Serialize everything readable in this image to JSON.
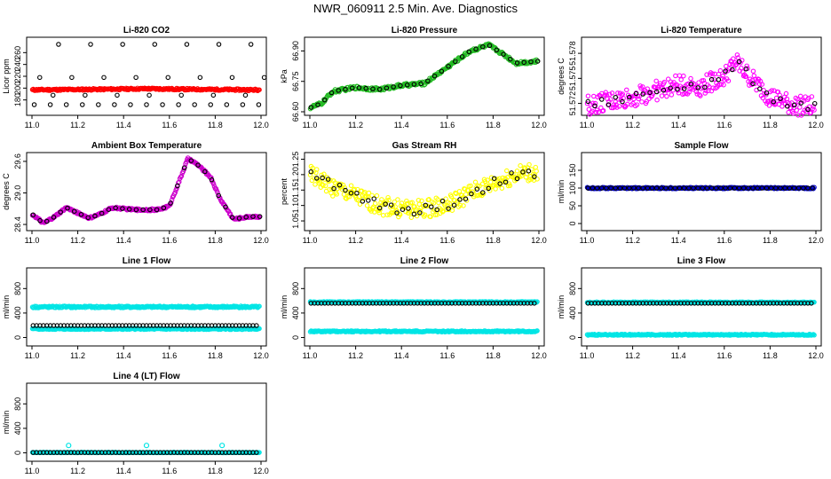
{
  "figure": {
    "title": "NWR_060911  2.5 Min. Ave. Diagnostics"
  },
  "chart_data": [
    {
      "type": "scatter",
      "title": "Li-820 CO2",
      "ylabel": "Licor ppm",
      "xlim": [
        11.0,
        12.0
      ],
      "ylim": [
        160,
        280
      ],
      "xticks": [
        "11.0",
        "11.2",
        "11.4",
        "11.6",
        "11.8",
        "12.0"
      ],
      "yticks": [
        {
          "v": 180,
          "label": "180"
        },
        {
          "v": 200,
          "label": "200"
        },
        {
          "v": 220,
          "label": "220"
        },
        {
          "v": 240,
          "label": "240"
        },
        {
          "v": 260,
          "label": "260"
        }
      ],
      "series": [
        {
          "kind": "band",
          "color": "#ff0000",
          "y": [
            [
              11.0,
              197
            ],
            [
              11.3,
              198
            ],
            [
              11.5,
              199
            ],
            [
              11.7,
              198
            ],
            [
              11.99,
              197
            ]
          ],
          "spread": 1.5
        },
        {
          "kind": "sparse",
          "color": "#000000",
          "x": [
            11.01,
            11.08,
            11.15,
            11.22,
            11.29,
            11.36,
            11.43,
            11.5,
            11.57,
            11.64,
            11.71,
            11.78,
            11.85,
            11.92,
            11.99
          ],
          "levels": [
            172,
            188,
            218,
            274
          ]
        }
      ]
    },
    {
      "type": "scatter",
      "title": "Li-820 Pressure",
      "ylabel": "kPa",
      "xlim": [
        11.0,
        12.0
      ],
      "ylim": [
        66.6,
        66.95
      ],
      "xticks": [
        "11.0",
        "11.2",
        "11.4",
        "11.6",
        "11.8",
        "12.0"
      ],
      "yticks": [
        {
          "v": 66.6,
          "label": "66.60"
        },
        {
          "v": 66.75,
          "label": "66.75"
        },
        {
          "v": 66.9,
          "label": "66.90"
        }
      ],
      "series": [
        {
          "kind": "band",
          "color": "#22bb22",
          "y": [
            [
              11.0,
              66.62
            ],
            [
              11.05,
              66.64
            ],
            [
              11.1,
              66.7
            ],
            [
              11.2,
              66.72
            ],
            [
              11.3,
              66.71
            ],
            [
              11.4,
              66.73
            ],
            [
              11.5,
              66.74
            ],
            [
              11.6,
              66.82
            ],
            [
              11.7,
              66.9
            ],
            [
              11.78,
              66.93
            ],
            [
              11.85,
              66.88
            ],
            [
              11.9,
              66.84
            ],
            [
              12.0,
              66.85
            ]
          ],
          "spread": 0.008
        },
        {
          "kind": "trace",
          "color": "#000000",
          "y": [
            [
              11.0,
              66.62
            ],
            [
              11.05,
              66.64
            ],
            [
              11.1,
              66.7
            ],
            [
              11.2,
              66.72
            ],
            [
              11.3,
              66.71
            ],
            [
              11.4,
              66.73
            ],
            [
              11.5,
              66.74
            ],
            [
              11.6,
              66.82
            ],
            [
              11.7,
              66.9
            ],
            [
              11.78,
              66.93
            ],
            [
              11.85,
              66.88
            ],
            [
              11.9,
              66.84
            ],
            [
              12.0,
              66.85
            ]
          ],
          "step": 0.03
        }
      ]
    },
    {
      "type": "scatter",
      "title": "Li-820 Temperature",
      "ylabel": "degrees C",
      "xlim": [
        11.0,
        12.0
      ],
      "ylim": [
        51.571,
        51.5795
      ],
      "xticks": [
        "11.0",
        "11.2",
        "11.4",
        "11.6",
        "11.8",
        "12.0"
      ],
      "yticks": [
        {
          "v": 51.572,
          "label": "51.572"
        },
        {
          "v": 51.575,
          "label": "51.575"
        },
        {
          "v": 51.578,
          "label": "51.578"
        }
      ],
      "series": [
        {
          "kind": "band",
          "color": "#ff00ff",
          "y": [
            [
              11.0,
              51.5718
            ],
            [
              11.1,
              51.5722
            ],
            [
              11.2,
              51.5728
            ],
            [
              11.3,
              51.5735
            ],
            [
              11.4,
              51.5742
            ],
            [
              11.5,
              51.5741
            ],
            [
              11.6,
              51.5752
            ],
            [
              11.65,
              51.577
            ],
            [
              11.7,
              51.5755
            ],
            [
              11.8,
              51.5728
            ],
            [
              11.9,
              51.5718
            ],
            [
              12.0,
              51.5716
            ]
          ],
          "spread": 0.0012
        },
        {
          "kind": "trace",
          "color": "#000000",
          "y": [
            [
              11.0,
              51.5718
            ],
            [
              11.1,
              51.5722
            ],
            [
              11.2,
              51.5728
            ],
            [
              11.3,
              51.5735
            ],
            [
              11.4,
              51.5742
            ],
            [
              11.5,
              51.5741
            ],
            [
              11.6,
              51.5752
            ],
            [
              11.65,
              51.577
            ],
            [
              11.7,
              51.5755
            ],
            [
              11.8,
              51.5728
            ],
            [
              11.9,
              51.5718
            ],
            [
              12.0,
              51.5716
            ]
          ],
          "step": 0.03,
          "jitter": 0.0005
        }
      ]
    },
    {
      "type": "scatter",
      "title": "Ambient Box Temperature",
      "ylabel": "degrees C",
      "xlim": [
        11.0,
        12.0
      ],
      "ylim": [
        28.35,
        29.7
      ],
      "xticks": [
        "11.0",
        "11.2",
        "11.4",
        "11.6",
        "11.8",
        "12.0"
      ],
      "yticks": [
        {
          "v": 28.4,
          "label": "28.4"
        },
        {
          "v": 29.0,
          "label": "29.0"
        },
        {
          "v": 29.6,
          "label": "29.6"
        }
      ],
      "series": [
        {
          "kind": "band",
          "color": "#cc00cc",
          "y": [
            [
              11.0,
              28.6
            ],
            [
              11.05,
              28.42
            ],
            [
              11.1,
              28.55
            ],
            [
              11.15,
              28.72
            ],
            [
              11.2,
              28.62
            ],
            [
              11.25,
              28.52
            ],
            [
              11.3,
              28.6
            ],
            [
              11.35,
              28.72
            ],
            [
              11.45,
              28.68
            ],
            [
              11.55,
              28.68
            ],
            [
              11.6,
              28.75
            ],
            [
              11.65,
              29.3
            ],
            [
              11.68,
              29.65
            ],
            [
              11.72,
              29.55
            ],
            [
              11.78,
              29.3
            ],
            [
              11.82,
              28.9
            ],
            [
              11.88,
              28.5
            ],
            [
              11.95,
              28.55
            ],
            [
              11.99,
              28.55
            ]
          ],
          "spread": 0.02
        },
        {
          "kind": "trace",
          "color": "#000000",
          "y": [
            [
              11.0,
              28.6
            ],
            [
              11.05,
              28.42
            ],
            [
              11.1,
              28.55
            ],
            [
              11.15,
              28.72
            ],
            [
              11.2,
              28.62
            ],
            [
              11.25,
              28.52
            ],
            [
              11.3,
              28.6
            ],
            [
              11.35,
              28.72
            ],
            [
              11.45,
              28.68
            ],
            [
              11.55,
              28.68
            ],
            [
              11.6,
              28.75
            ],
            [
              11.65,
              29.3
            ],
            [
              11.68,
              29.65
            ],
            [
              11.72,
              29.55
            ],
            [
              11.78,
              29.3
            ],
            [
              11.82,
              28.9
            ],
            [
              11.88,
              28.5
            ],
            [
              11.95,
              28.55
            ],
            [
              11.99,
              28.55
            ]
          ],
          "step": 0.03
        }
      ]
    },
    {
      "type": "scatter",
      "title": "Gas Stream RH",
      "ylabel": "percent",
      "xlim": [
        11.0,
        12.0
      ],
      "ylim": [
        1.03,
        1.26
      ],
      "xticks": [
        "11.0",
        "11.2",
        "11.4",
        "11.6",
        "11.8",
        "12.0"
      ],
      "yticks": [
        {
          "v": 1.05,
          "label": "1.05"
        },
        {
          "v": 1.1,
          "label": "1.10"
        },
        {
          "v": 1.15,
          "label": "1.15"
        },
        {
          "v": 1.2,
          "label": "1.20"
        },
        {
          "v": 1.25,
          "label": "1.25"
        }
      ],
      "series": [
        {
          "kind": "band",
          "color": "#ffff00",
          "y": [
            [
              11.0,
              1.2
            ],
            [
              11.1,
              1.16
            ],
            [
              11.2,
              1.13
            ],
            [
              11.3,
              1.1
            ],
            [
              11.4,
              1.09
            ],
            [
              11.5,
              1.09
            ],
            [
              11.6,
              1.1
            ],
            [
              11.7,
              1.14
            ],
            [
              11.8,
              1.17
            ],
            [
              11.9,
              1.2
            ],
            [
              12.0,
              1.21
            ]
          ],
          "spread": 0.03
        },
        {
          "kind": "trace",
          "color": "#000000",
          "y": [
            [
              11.0,
              1.2
            ],
            [
              11.1,
              1.16
            ],
            [
              11.2,
              1.13
            ],
            [
              11.3,
              1.1
            ],
            [
              11.4,
              1.09
            ],
            [
              11.5,
              1.09
            ],
            [
              11.6,
              1.1
            ],
            [
              11.7,
              1.14
            ],
            [
              11.8,
              1.17
            ],
            [
              11.9,
              1.2
            ],
            [
              12.0,
              1.21
            ]
          ],
          "step": 0.025,
          "jitter": 0.018
        }
      ]
    },
    {
      "type": "scatter",
      "title": "Sample Flow",
      "ylabel": "ml/min",
      "xlim": [
        11.0,
        12.0
      ],
      "ylim": [
        -10,
        190
      ],
      "xticks": [
        "11.0",
        "11.2",
        "11.4",
        "11.6",
        "11.8",
        "12.0"
      ],
      "yticks": [
        {
          "v": 0,
          "label": "0"
        },
        {
          "v": 50,
          "label": "50"
        },
        {
          "v": 100,
          "label": "100"
        },
        {
          "v": 150,
          "label": "150"
        }
      ],
      "series": [
        {
          "kind": "band",
          "color": "#0000cc",
          "y": [
            [
              11.0,
              100
            ],
            [
              11.99,
              100
            ]
          ],
          "spread": 2
        },
        {
          "kind": "trace",
          "color": "#000000",
          "y": [
            [
              11.0,
              100
            ],
            [
              11.99,
              100
            ]
          ],
          "step": 0.02
        }
      ]
    },
    {
      "type": "scatter",
      "title": "Line 1 Flow",
      "ylabel": "ml/min",
      "xlim": [
        11.0,
        12.0
      ],
      "ylim": [
        -80,
        1080
      ],
      "xticks": [
        "11.0",
        "11.2",
        "11.4",
        "11.6",
        "11.8",
        "12.0"
      ],
      "yticks": [
        {
          "v": 0,
          "label": "0"
        },
        {
          "v": 400,
          "label": "400"
        },
        {
          "v": 800,
          "label": "800"
        }
      ],
      "series": [
        {
          "kind": "band",
          "color": "#00e5e5",
          "y": [
            [
              11.0,
              500
            ],
            [
              11.99,
              500
            ]
          ],
          "spread": 15
        },
        {
          "kind": "band",
          "color": "#00e5e5",
          "y": [
            [
              11.0,
              140
            ],
            [
              11.99,
              140
            ]
          ],
          "spread": 10
        },
        {
          "kind": "trace",
          "color": "#000000",
          "y": [
            [
              11.0,
              195
            ],
            [
              11.99,
              195
            ]
          ],
          "step": 0.015
        }
      ]
    },
    {
      "type": "scatter",
      "title": "Line 2 Flow",
      "ylabel": "ml/min",
      "xlim": [
        11.0,
        12.0
      ],
      "ylim": [
        -80,
        1080
      ],
      "xticks": [
        "11.0",
        "11.2",
        "11.4",
        "11.6",
        "11.8",
        "12.0"
      ],
      "yticks": [
        {
          "v": 0,
          "label": "0"
        },
        {
          "v": 400,
          "label": "400"
        },
        {
          "v": 800,
          "label": "800"
        }
      ],
      "series": [
        {
          "kind": "band",
          "color": "#00e5e5",
          "y": [
            [
              11.0,
              580
            ],
            [
              11.99,
              580
            ]
          ],
          "spread": 8
        },
        {
          "kind": "band",
          "color": "#00e5e5",
          "y": [
            [
              11.0,
              100
            ],
            [
              11.99,
              100
            ]
          ],
          "spread": 10
        },
        {
          "kind": "trace",
          "color": "#000000",
          "y": [
            [
              11.0,
              560
            ],
            [
              11.99,
              560
            ]
          ],
          "step": 0.015
        }
      ]
    },
    {
      "type": "scatter",
      "title": "Line 3 Flow",
      "ylabel": "ml/min",
      "xlim": [
        11.0,
        12.0
      ],
      "ylim": [
        -80,
        1080
      ],
      "xticks": [
        "11.0",
        "11.2",
        "11.4",
        "11.6",
        "11.8",
        "12.0"
      ],
      "yticks": [
        {
          "v": 0,
          "label": "0"
        },
        {
          "v": 400,
          "label": "400"
        },
        {
          "v": 800,
          "label": "800"
        }
      ],
      "series": [
        {
          "kind": "band",
          "color": "#00e5e5",
          "y": [
            [
              11.0,
              575
            ],
            [
              11.99,
              575
            ]
          ],
          "spread": 8
        },
        {
          "kind": "band",
          "color": "#00e5e5",
          "y": [
            [
              11.0,
              45
            ],
            [
              11.99,
              45
            ]
          ],
          "spread": 10
        },
        {
          "kind": "trace",
          "color": "#000000",
          "y": [
            [
              11.0,
              560
            ],
            [
              11.99,
              560
            ]
          ],
          "step": 0.015
        }
      ]
    },
    {
      "type": "scatter",
      "title": "Line 4 (LT) Flow",
      "ylabel": "ml/min",
      "xlim": [
        11.0,
        12.0
      ],
      "ylim": [
        -80,
        1080
      ],
      "xticks": [
        "11.0",
        "11.2",
        "11.4",
        "11.6",
        "11.8",
        "12.0"
      ],
      "yticks": [
        {
          "v": 0,
          "label": "0"
        },
        {
          "v": 400,
          "label": "400"
        },
        {
          "v": 800,
          "label": "800"
        }
      ],
      "series": [
        {
          "kind": "band",
          "color": "#00e5e5",
          "y": [
            [
              11.0,
              5
            ],
            [
              11.99,
              5
            ]
          ],
          "spread": 4
        },
        {
          "kind": "trace",
          "color": "#000000",
          "y": [
            [
              11.0,
              5
            ],
            [
              11.99,
              5
            ]
          ],
          "step": 0.015
        },
        {
          "kind": "points",
          "color": "#00e5e5",
          "pts": [
            [
              11.16,
              120
            ],
            [
              11.5,
              120
            ],
            [
              11.83,
              120
            ]
          ]
        }
      ]
    }
  ]
}
